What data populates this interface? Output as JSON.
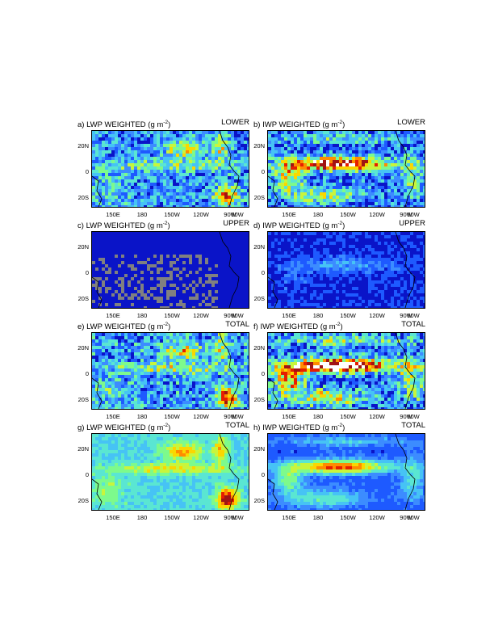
{
  "figure": {
    "x_ticks": [
      "150E",
      "180",
      "150W",
      "120W",
      "90W",
      "60W"
    ],
    "y_ticks": [
      "20N",
      "0",
      "20S"
    ]
  },
  "colors": {
    "scale": [
      "#0a14c8",
      "#1e5aff",
      "#3c8cff",
      "#46c3f5",
      "#5ae6d2",
      "#7dfa8c",
      "#c8f53c",
      "#fad700",
      "#ff8c00",
      "#e61e00",
      "#a01414",
      "#ffffff"
    ],
    "land_gray": "#808080"
  },
  "chart_data": [
    {
      "type": "heatmap",
      "letter": "a)",
      "title": "LWP WEIGHTED",
      "units_pre": "(g m",
      "units_exp": "-2",
      "units_post": ")",
      "level": "LOWER",
      "field": "lwp",
      "intensity": 1.0,
      "grey_fill": false,
      "x": [
        "150E",
        "180",
        "150W",
        "120W",
        "90W",
        "60W"
      ],
      "y": [
        "20N",
        "0",
        "20S"
      ]
    },
    {
      "type": "heatmap",
      "letter": "b)",
      "title": "IWP WEIGHTED",
      "units_pre": "(g m",
      "units_exp": "-2",
      "units_post": ")",
      "level": "LOWER",
      "field": "iwp",
      "intensity": 1.0,
      "grey_fill": false,
      "x": [
        "150E",
        "180",
        "150W",
        "120W",
        "90W",
        "60W"
      ],
      "y": [
        "20N",
        "0",
        "20S"
      ]
    },
    {
      "type": "heatmap",
      "letter": "c)",
      "title": "LWP WEIGHTED",
      "units_pre": "(g m",
      "units_exp": "-2",
      "units_post": ")",
      "level": "UPPER",
      "field": "lwp_upper",
      "intensity": 0.15,
      "grey_fill": true,
      "x": [
        "150E",
        "180",
        "150W",
        "120W",
        "90W",
        "60W"
      ],
      "y": [
        "20N",
        "0",
        "20S"
      ]
    },
    {
      "type": "heatmap",
      "letter": "d)",
      "title": "IWP WEIGHTED",
      "units_pre": "(g m",
      "units_exp": "-2",
      "units_post": ")",
      "level": "UPPER",
      "field": "iwp_upper",
      "intensity": 0.4,
      "grey_fill": false,
      "x": [
        "150E",
        "180",
        "150W",
        "120W",
        "90W",
        "60W"
      ],
      "y": [
        "20N",
        "0",
        "20S"
      ]
    },
    {
      "type": "heatmap",
      "letter": "e)",
      "title": "LWP WEIGHTED",
      "units_pre": "(g m",
      "units_exp": "-2",
      "units_post": ")",
      "level": "TOTAL",
      "field": "lwp",
      "intensity": 1.05,
      "grey_fill": false,
      "x": [
        "150E",
        "180",
        "150W",
        "120W",
        "90W",
        "60W"
      ],
      "y": [
        "20N",
        "0",
        "20S"
      ]
    },
    {
      "type": "heatmap",
      "letter": "f)",
      "title": "IWP WEIGHTED",
      "units_pre": "(g m",
      "units_exp": "-2",
      "units_post": ")",
      "level": "TOTAL",
      "field": "iwp",
      "intensity": 1.15,
      "grey_fill": false,
      "x": [
        "150E",
        "180",
        "150W",
        "120W",
        "90W",
        "60W"
      ],
      "y": [
        "20N",
        "0",
        "20S"
      ]
    },
    {
      "type": "heatmap",
      "letter": "g)",
      "title": "LWP WEIGHTED",
      "units_pre": "(g m",
      "units_exp": "-2",
      "units_post": ")",
      "level": "TOTAL",
      "field": "lwp_smooth",
      "intensity": 1.0,
      "grey_fill": false,
      "x": [
        "150E",
        "180",
        "150W",
        "120W",
        "90W",
        "60W"
      ],
      "y": [
        "20N",
        "0",
        "20S"
      ]
    },
    {
      "type": "heatmap",
      "letter": "h)",
      "title": "IWP WEIGHTED",
      "units_pre": "(g m",
      "units_exp": "-2",
      "units_post": ")",
      "level": "TOTAL",
      "field": "iwp_smooth",
      "intensity": 0.8,
      "grey_fill": false,
      "x": [
        "150E",
        "180",
        "150W",
        "120W",
        "90W",
        "60W"
      ],
      "y": [
        "20N",
        "0",
        "20S"
      ]
    }
  ]
}
